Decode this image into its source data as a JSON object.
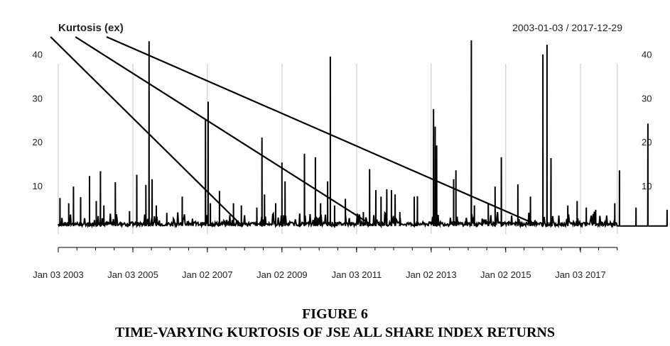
{
  "chart_data": {
    "type": "line",
    "title": "Kurtosis (ex)",
    "date_range": "2003-01-03 / 2017-12-29",
    "xlim": [
      "2003-01-03",
      "2017-12-29"
    ],
    "ylim": [
      -2,
      44
    ],
    "grid": "vertical only",
    "y_ticks": [
      10,
      20,
      30,
      40
    ],
    "y_tick_labels": [
      "10",
      "20",
      "30",
      "40"
    ],
    "x_ticks": [
      "2003-01-03",
      "2005-01-03",
      "2007-01-02",
      "2009-01-02",
      "2011-01-03",
      "2013-01-02",
      "2015-01-02",
      "2017-01-03"
    ],
    "x_tick_labels": [
      "Jan 03 2003",
      "Jan 03 2005",
      "Jan 02 2007",
      "Jan 02 2009",
      "Jan 03 2011",
      "Jan 02 2013",
      "Jan 02 2015",
      "Jan 03 2017"
    ],
    "series": [
      {
        "baseline": 0.8,
        "spikes": [
          [
            "2003-01-20",
            7.2
          ],
          [
            "2003-04-15",
            6.0
          ],
          [
            "2003-06-01",
            9.8
          ],
          [
            "2003-08-10",
            7.4
          ],
          [
            "2003-11-05",
            12.2
          ],
          [
            "2004-01-10",
            6.5
          ],
          [
            "2004-02-20",
            13.3
          ],
          [
            "2004-03-25",
            5.5
          ],
          [
            "2004-07-15",
            10.8
          ],
          [
            "2004-12-01",
            4.2
          ],
          [
            "2005-02-10",
            12.5
          ],
          [
            "2005-05-10",
            10.2
          ],
          [
            "2005-06-10",
            43.0
          ],
          [
            "2005-07-10",
            11.5
          ],
          [
            "2005-08-20",
            5.5
          ],
          [
            "2005-12-01",
            3.8
          ],
          [
            "2006-05-01",
            7.5
          ],
          [
            "2006-12-15",
            25.3
          ],
          [
            "2007-01-10",
            29.2
          ],
          [
            "2007-02-01",
            6.0
          ],
          [
            "2007-05-01",
            8.8
          ],
          [
            "2007-09-15",
            6.0
          ],
          [
            "2007-12-01",
            5.5
          ],
          [
            "2008-05-01",
            5.0
          ],
          [
            "2008-06-20",
            21.0
          ],
          [
            "2008-07-15",
            8.0
          ],
          [
            "2008-11-01",
            6.0
          ],
          [
            "2009-01-01",
            15.3
          ],
          [
            "2009-02-01",
            11.0
          ],
          [
            "2009-08-10",
            17.3
          ],
          [
            "2009-11-25",
            16.5
          ],
          [
            "2010-01-15",
            6.0
          ],
          [
            "2010-03-25",
            11.0
          ],
          [
            "2010-04-20",
            39.5
          ],
          [
            "2010-06-01",
            5.5
          ],
          [
            "2010-09-15",
            7.0
          ],
          [
            "2011-03-10",
            4.0
          ],
          [
            "2011-05-10",
            13.8
          ],
          [
            "2011-07-10",
            9.0
          ],
          [
            "2011-08-30",
            7.5
          ],
          [
            "2011-10-25",
            9.2
          ],
          [
            "2011-12-10",
            9.0
          ],
          [
            "2012-01-15",
            8.0
          ],
          [
            "2012-03-01",
            4.0
          ],
          [
            "2012-07-20",
            7.5
          ],
          [
            "2012-08-20",
            7.6
          ],
          [
            "2013-01-25",
            27.5
          ],
          [
            "2013-02-10",
            23.5
          ],
          [
            "2013-02-25",
            19.2
          ],
          [
            "2013-08-10",
            11.5
          ],
          [
            "2013-09-01",
            13.5
          ],
          [
            "2014-01-30",
            43.2
          ],
          [
            "2014-03-01",
            5.5
          ],
          [
            "2014-07-15",
            6.0
          ],
          [
            "2014-09-20",
            9.8
          ],
          [
            "2014-11-20",
            16.5
          ],
          [
            "2015-05-01",
            10.3
          ],
          [
            "2015-09-01",
            7.5
          ],
          [
            "2016-01-01",
            40.0
          ],
          [
            "2016-02-10",
            42.2
          ],
          [
            "2016-03-20",
            16.3
          ],
          [
            "2016-09-01",
            5.5
          ],
          [
            "2016-12-01",
            6.5
          ],
          [
            "2017-03-01",
            5.0
          ],
          [
            "2017-06-01",
            4.5
          ],
          [
            "2017-12-05",
            6.0
          ],
          [
            "2018-01-20",
            13.5
          ],
          [
            "2018-07-01",
            5.0
          ],
          [
            "2018-10-25",
            24.2
          ],
          [
            "2019-05-01",
            4.5
          ]
        ]
      }
    ],
    "overlay_lines": [
      {
        "from": [
          "2002-10-20",
          44.0
        ],
        "to": [
          "2007-12-01",
          1.0
        ]
      },
      {
        "from": [
          "2003-06-20",
          44.0
        ],
        "to": [
          "2011-06-01",
          1.0
        ]
      },
      {
        "from": [
          "2004-04-20",
          44.0
        ],
        "to": [
          "2015-11-10",
          1.0
        ]
      }
    ]
  },
  "figure": {
    "label": "FIGURE 6",
    "caption": "TIME-VARYING KURTOSIS OF JSE ALL SHARE INDEX RETURNS"
  }
}
